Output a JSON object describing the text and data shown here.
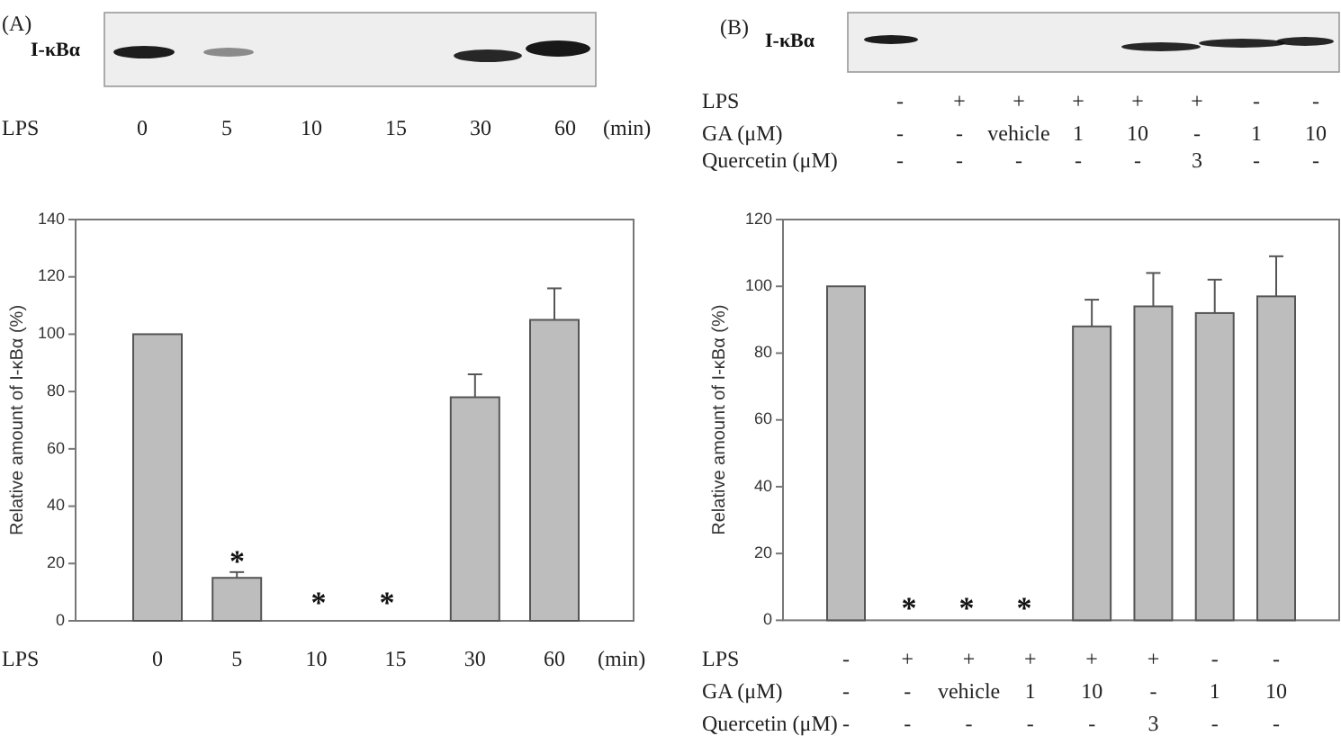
{
  "chart_data": [
    {
      "type": "bar",
      "title": "(A)",
      "xlabel": "LPS",
      "ylabel": "Relative amount of I-κBα (%)",
      "categories": [
        "0",
        "5",
        "10",
        "15",
        "30",
        "60"
      ],
      "values": [
        100,
        15,
        0,
        0,
        78,
        105
      ],
      "errors": [
        null,
        [
          15,
          17
        ],
        null,
        null,
        [
          78,
          86
        ],
        [
          105,
          116
        ]
      ],
      "color": "#bdbdbd",
      "ylim": [
        0,
        140
      ],
      "yticks": [
        0,
        20,
        40,
        60,
        80,
        100,
        120,
        140
      ],
      "annotations": [
        "I-κBα",
        "(min)",
        "*",
        "*",
        "*"
      ]
    },
    {
      "type": "bar",
      "title": "(B)",
      "xlabel": "LPS\nGA (μM)\nQuercetin (μM)",
      "ylabel": "Relative amount of I-κBα (%)",
      "categories": [
        "-\n-\n-",
        "+\n-\n-",
        "+\nvehicle\n-",
        "+\n1\n-",
        "+\n10\n-",
        "+\n-\n3",
        "-\n1\n-",
        "-\n10\n-"
      ],
      "values": [
        100,
        0,
        0,
        0,
        88,
        94,
        92,
        97
      ],
      "errors": [
        null,
        null,
        null,
        null,
        [
          88,
          96
        ],
        [
          94,
          104
        ],
        [
          92,
          102
        ],
        [
          97,
          109
        ]
      ],
      "color": "#bdbdbd",
      "ylim": [
        0,
        120
      ],
      "yticks": [
        0,
        20,
        40,
        60,
        80,
        100,
        120
      ],
      "annotations": [
        "I-κBα",
        "*",
        "*",
        "*"
      ]
    }
  ]
}
